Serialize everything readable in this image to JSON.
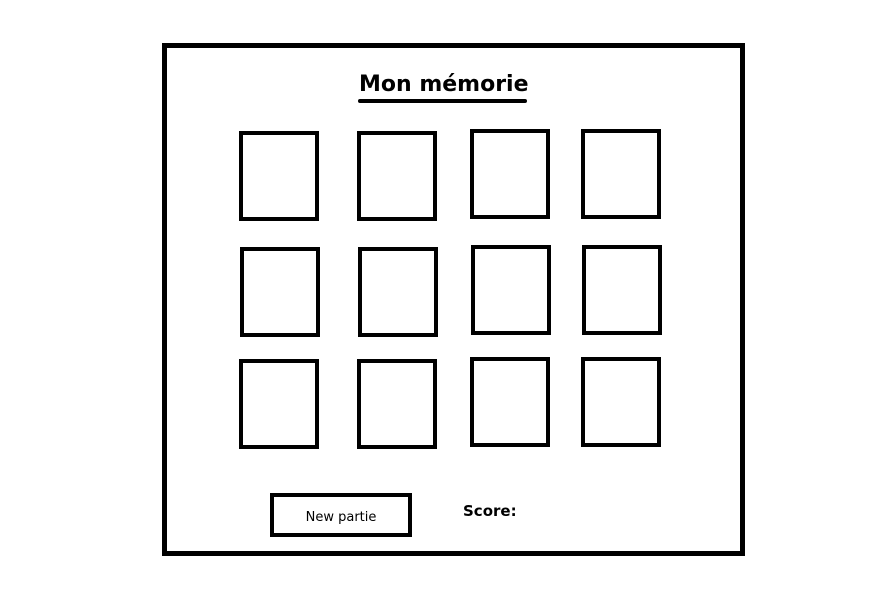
{
  "game": {
    "title": "Mon mémorie",
    "new_game_label": "New partie",
    "score_label": "Score:",
    "score_value": "",
    "cards": [
      {
        "row": 1,
        "col": 1,
        "face": ""
      },
      {
        "row": 1,
        "col": 2,
        "face": ""
      },
      {
        "row": 1,
        "col": 3,
        "face": ""
      },
      {
        "row": 1,
        "col": 4,
        "face": ""
      },
      {
        "row": 2,
        "col": 1,
        "face": ""
      },
      {
        "row": 2,
        "col": 2,
        "face": ""
      },
      {
        "row": 2,
        "col": 3,
        "face": ""
      },
      {
        "row": 2,
        "col": 4,
        "face": ""
      },
      {
        "row": 3,
        "col": 1,
        "face": ""
      },
      {
        "row": 3,
        "col": 2,
        "face": ""
      },
      {
        "row": 3,
        "col": 3,
        "face": ""
      },
      {
        "row": 3,
        "col": 4,
        "face": ""
      }
    ]
  }
}
